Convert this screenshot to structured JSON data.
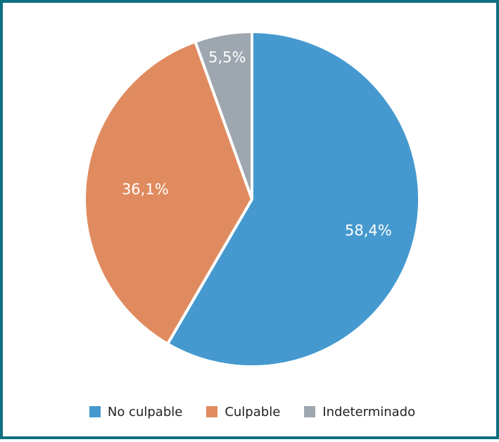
{
  "chart_data": {
    "type": "pie",
    "title": "",
    "slices": [
      {
        "name": "No culpable",
        "value": 58.4,
        "label": "58,4%",
        "color": "#4599cf"
      },
      {
        "name": "Culpable",
        "value": 36.1,
        "label": "36,1%",
        "color": "#e08b5f"
      },
      {
        "name": "Indeterminado",
        "value": 5.5,
        "label": "5,5%",
        "color": "#9ea6af"
      }
    ],
    "start": "top",
    "direction": "clockwise",
    "legend_position": "bottom",
    "border_color": "#0e6f7f"
  }
}
